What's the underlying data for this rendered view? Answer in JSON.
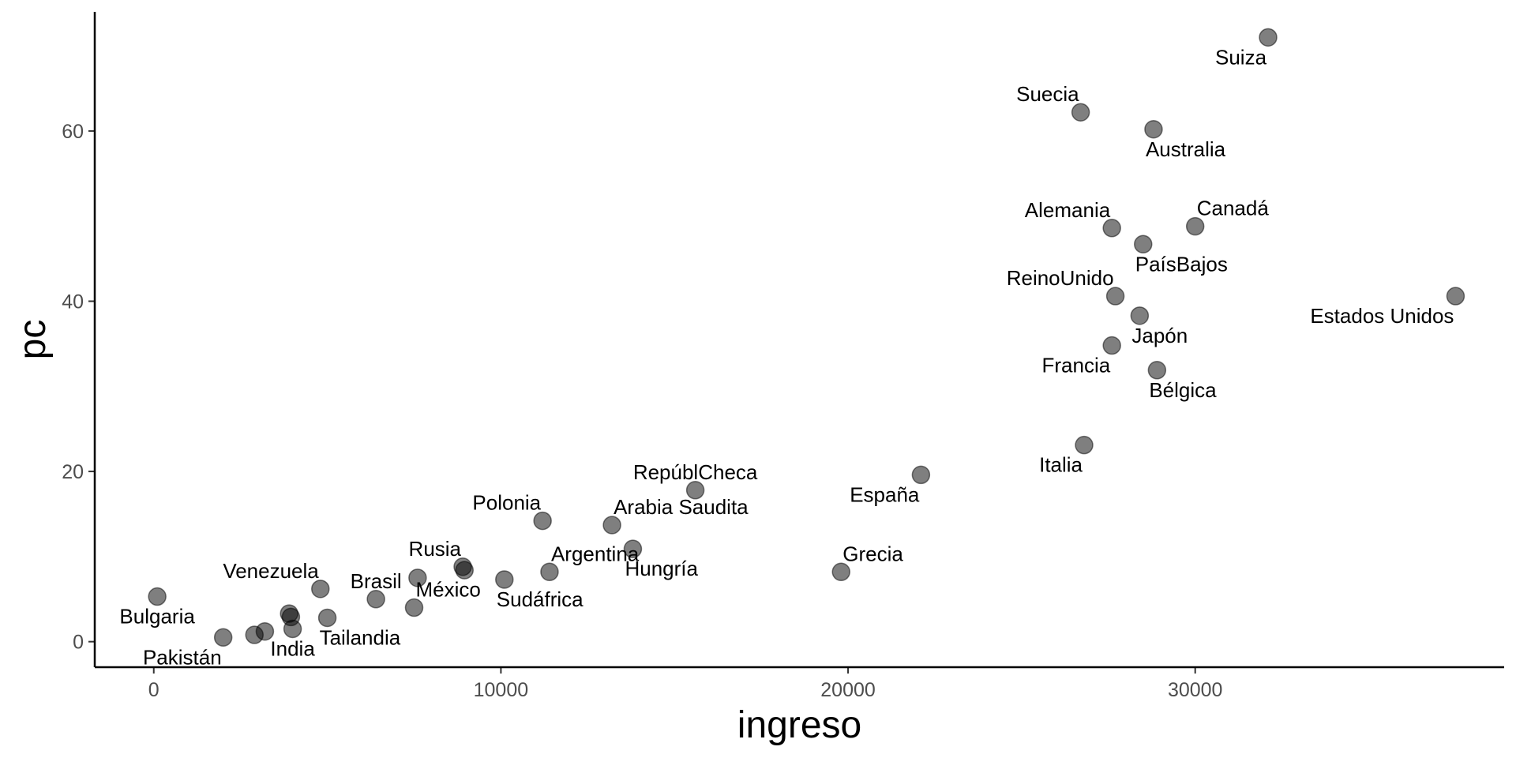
{
  "chart_data": {
    "type": "scatter",
    "title": "",
    "xlabel": "ingreso",
    "ylabel": "pc",
    "xlim": [
      -1700,
      38900
    ],
    "ylim": [
      -3,
      74
    ],
    "x_ticks": [
      0,
      10000,
      20000,
      30000
    ],
    "y_ticks": [
      0,
      20,
      40,
      60
    ],
    "grid": false,
    "legend": "none",
    "point_color": "#000000",
    "points": [
      {
        "label": "Suiza",
        "x": 32100,
        "y": 71.0,
        "label_dir": "bl"
      },
      {
        "label": "Suecia",
        "x": 26700,
        "y": 62.2,
        "label_dir": "tl"
      },
      {
        "label": "Australia",
        "x": 28800,
        "y": 60.2,
        "label_dir": "br"
      },
      {
        "label": "Alemania",
        "x": 27600,
        "y": 48.6,
        "label_dir": "tl"
      },
      {
        "label": "Canadá",
        "x": 30000,
        "y": 48.8,
        "label_dir": "tr"
      },
      {
        "label": "PaísBajos",
        "x": 28500,
        "y": 46.7,
        "label_dir": "br"
      },
      {
        "label": "ReinoUnido",
        "x": 27700,
        "y": 40.6,
        "label_dir": "tl"
      },
      {
        "label": "Estados Unidos",
        "x": 37500,
        "y": 40.6,
        "label_dir": "bl"
      },
      {
        "label": "Japón",
        "x": 28400,
        "y": 38.3,
        "label_dir": "br"
      },
      {
        "label": "Francia",
        "x": 27600,
        "y": 34.8,
        "label_dir": "bl"
      },
      {
        "label": "Bélgica",
        "x": 28900,
        "y": 31.9,
        "label_dir": "br"
      },
      {
        "label": "Italia",
        "x": 26800,
        "y": 23.1,
        "label_dir": "bl"
      },
      {
        "label": "España",
        "x": 22100,
        "y": 19.6,
        "label_dir": "bl"
      },
      {
        "label": "RepúblCheca",
        "x": 15600,
        "y": 17.8,
        "label_dir": "t"
      },
      {
        "label": "Polonia",
        "x": 11200,
        "y": 14.2,
        "label_dir": "tl"
      },
      {
        "label": "Arabia Saudita",
        "x": 13200,
        "y": 13.7,
        "label_dir": "tr"
      },
      {
        "label": "Hungría",
        "x": 13800,
        "y": 10.9,
        "label_dir": "br"
      },
      {
        "label": "Argentina",
        "x": 11400,
        "y": 8.2,
        "label_dir": "tr"
      },
      {
        "label": "Grecia",
        "x": 19800,
        "y": 8.2,
        "label_dir": "tr"
      },
      {
        "label": "Sudáfrica",
        "x": 10100,
        "y": 7.3,
        "label_dir": "br"
      },
      {
        "label": "Rusia",
        "x": 8900,
        "y": 8.8,
        "label_dir": "tl"
      },
      {
        "label": "",
        "x": 8950,
        "y": 8.4
      },
      {
        "label": "México",
        "x": 7500,
        "y": 4.0,
        "label_dir": "tr"
      },
      {
        "label": "",
        "x": 7600,
        "y": 7.5
      },
      {
        "label": "Brasil",
        "x": 6400,
        "y": 5.0,
        "label_dir": "t"
      },
      {
        "label": "Venezuela",
        "x": 4800,
        "y": 6.2,
        "label_dir": "tl"
      },
      {
        "label": "Tailandia",
        "x": 5000,
        "y": 2.8,
        "label_dir": "br"
      },
      {
        "label": "",
        "x": 3900,
        "y": 3.3
      },
      {
        "label": "",
        "x": 3950,
        "y": 2.9
      },
      {
        "label": "India",
        "x": 4000,
        "y": 1.5,
        "label_dir": "b"
      },
      {
        "label": "",
        "x": 3200,
        "y": 1.2
      },
      {
        "label": "",
        "x": 2900,
        "y": 0.8
      },
      {
        "label": "Pakistán",
        "x": 2000,
        "y": 0.5,
        "label_dir": "bl"
      },
      {
        "label": "Bulgaria",
        "x": 100,
        "y": 5.3,
        "label_dir": "b"
      }
    ]
  }
}
